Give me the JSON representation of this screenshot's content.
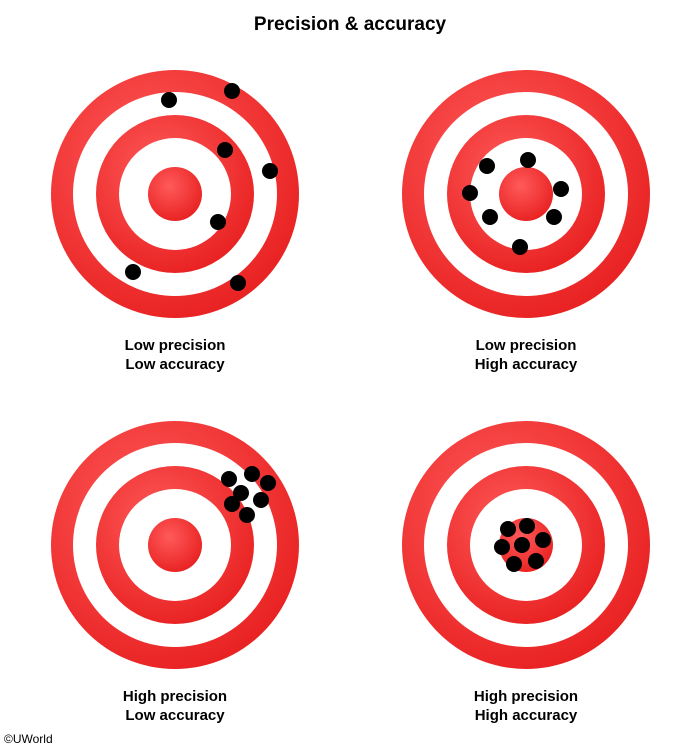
{
  "title": "Precision & accuracy",
  "panels": [
    {
      "precision": "Low precision",
      "accuracy": "Low accuracy"
    },
    {
      "precision": "Low precision",
      "accuracy": "High accuracy"
    },
    {
      "precision": "High precision",
      "accuracy": "Low accuracy"
    },
    {
      "precision": "High precision",
      "accuracy": "High accuracy"
    }
  ],
  "copyright": "©UWorld",
  "colors": {
    "ring": "#f03434",
    "white": "#ffffff",
    "dot": "#000000"
  }
}
